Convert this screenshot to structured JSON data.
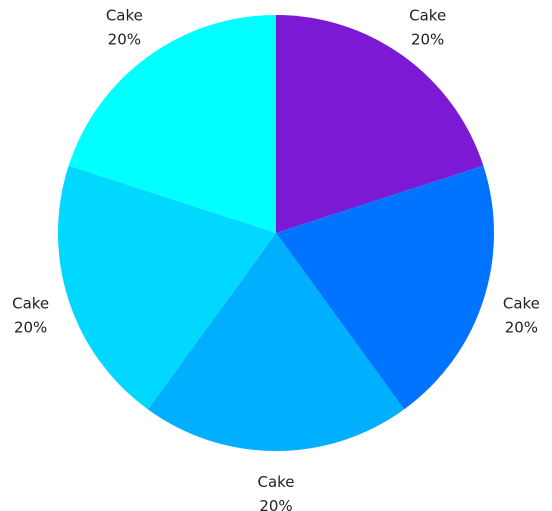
{
  "chart_data": {
    "type": "pie",
    "title": "",
    "start_angle_deg": 0,
    "direction": "clockwise",
    "slices": [
      {
        "label": "Cake",
        "value": 20,
        "value_label": "20%",
        "color": "#7b19d4"
      },
      {
        "label": "Cake",
        "value": 20,
        "value_label": "20%",
        "color": "#0073ff"
      },
      {
        "label": "Cake",
        "value": 20,
        "value_label": "20%",
        "color": "#00b0ff"
      },
      {
        "label": "Cake",
        "value": 20,
        "value_label": "20%",
        "color": "#00d8ff"
      },
      {
        "label": "Cake",
        "value": 20,
        "value_label": "20%",
        "color": "#00ffff"
      }
    ]
  }
}
